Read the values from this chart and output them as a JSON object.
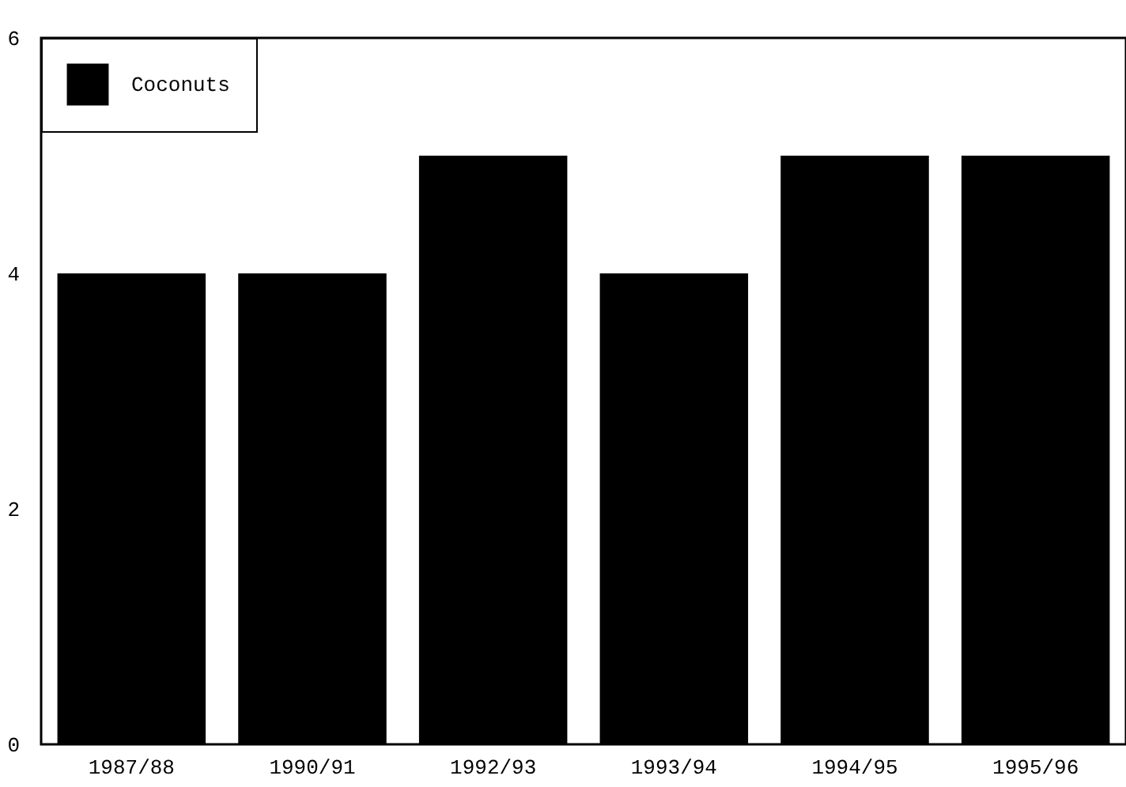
{
  "chart_data": {
    "type": "bar",
    "categories": [
      "1987/88",
      "1990/91",
      "1992/93",
      "1993/94",
      "1994/95",
      "1995/96"
    ],
    "series": [
      {
        "name": "Coconuts",
        "color": "#000000",
        "values": [
          4,
          4,
          5,
          4,
          5,
          5
        ]
      }
    ],
    "ylim": [
      0,
      6
    ],
    "yticks": [
      0,
      2,
      4,
      6
    ],
    "grid": false,
    "legend": "top left"
  }
}
